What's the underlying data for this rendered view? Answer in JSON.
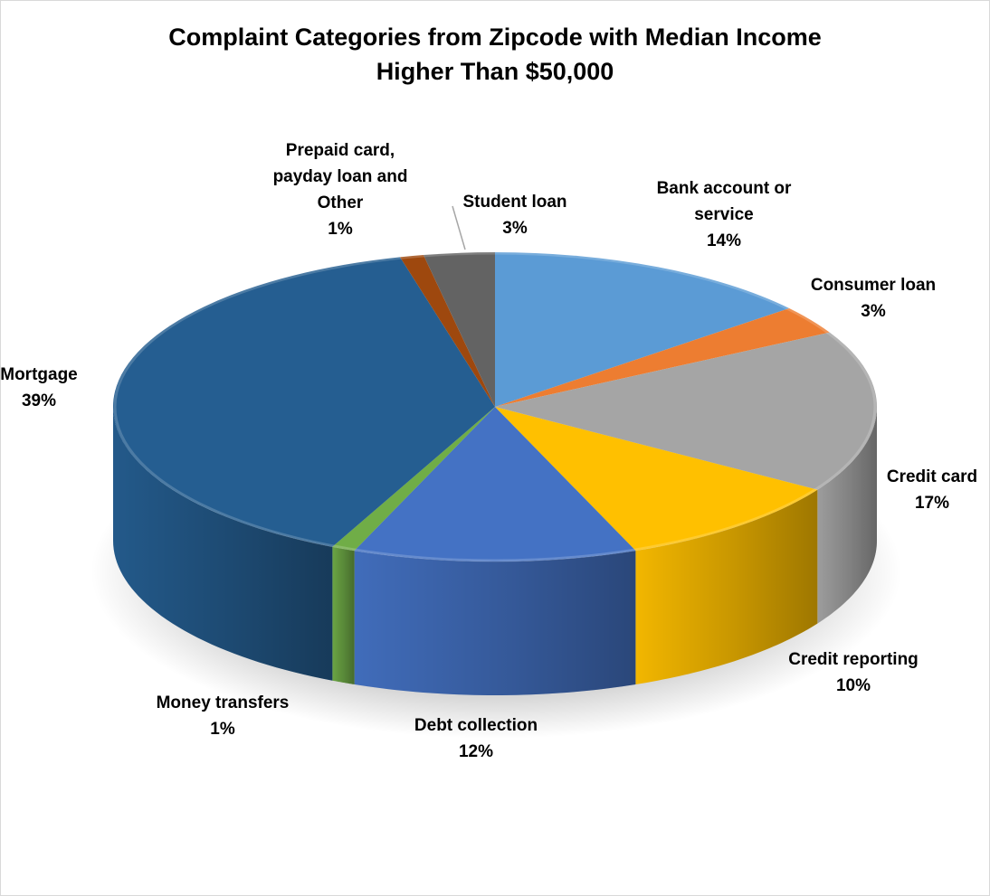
{
  "chart_data": {
    "type": "pie",
    "title_lines": [
      "Complaint Categories from Zipcode with Median Income",
      "Higher Than $50,000"
    ],
    "slices": [
      {
        "label_lines": [
          "Bank account  or",
          "service"
        ],
        "value": 14,
        "pct_label": "14%",
        "color": "#5b9bd5"
      },
      {
        "label_lines": [
          "Consumer loan"
        ],
        "value": 3,
        "pct_label": "3%",
        "color": "#ed7d31"
      },
      {
        "label_lines": [
          "Credit card"
        ],
        "value": 17,
        "pct_label": "17%",
        "color": "#a5a5a5"
      },
      {
        "label_lines": [
          "Credit reporting"
        ],
        "value": 10,
        "pct_label": "10%",
        "color": "#ffc000"
      },
      {
        "label_lines": [
          "Debt collection"
        ],
        "value": 12,
        "pct_label": "12%",
        "color": "#4472c4"
      },
      {
        "label_lines": [
          "Money transfers"
        ],
        "value": 1,
        "pct_label": "1%",
        "color": "#70ad47"
      },
      {
        "label_lines": [
          "Mortgage"
        ],
        "value": 39,
        "pct_label": "39%",
        "color": "#255e91"
      },
      {
        "label_lines": [
          "Prepaid card,",
          "payday loan and",
          "Other"
        ],
        "value": 1,
        "pct_label": "1%",
        "color": "#9e480e"
      },
      {
        "label_lines": [
          "Student loan"
        ],
        "value": 3,
        "pct_label": "3%",
        "color": "#636363"
      }
    ]
  }
}
